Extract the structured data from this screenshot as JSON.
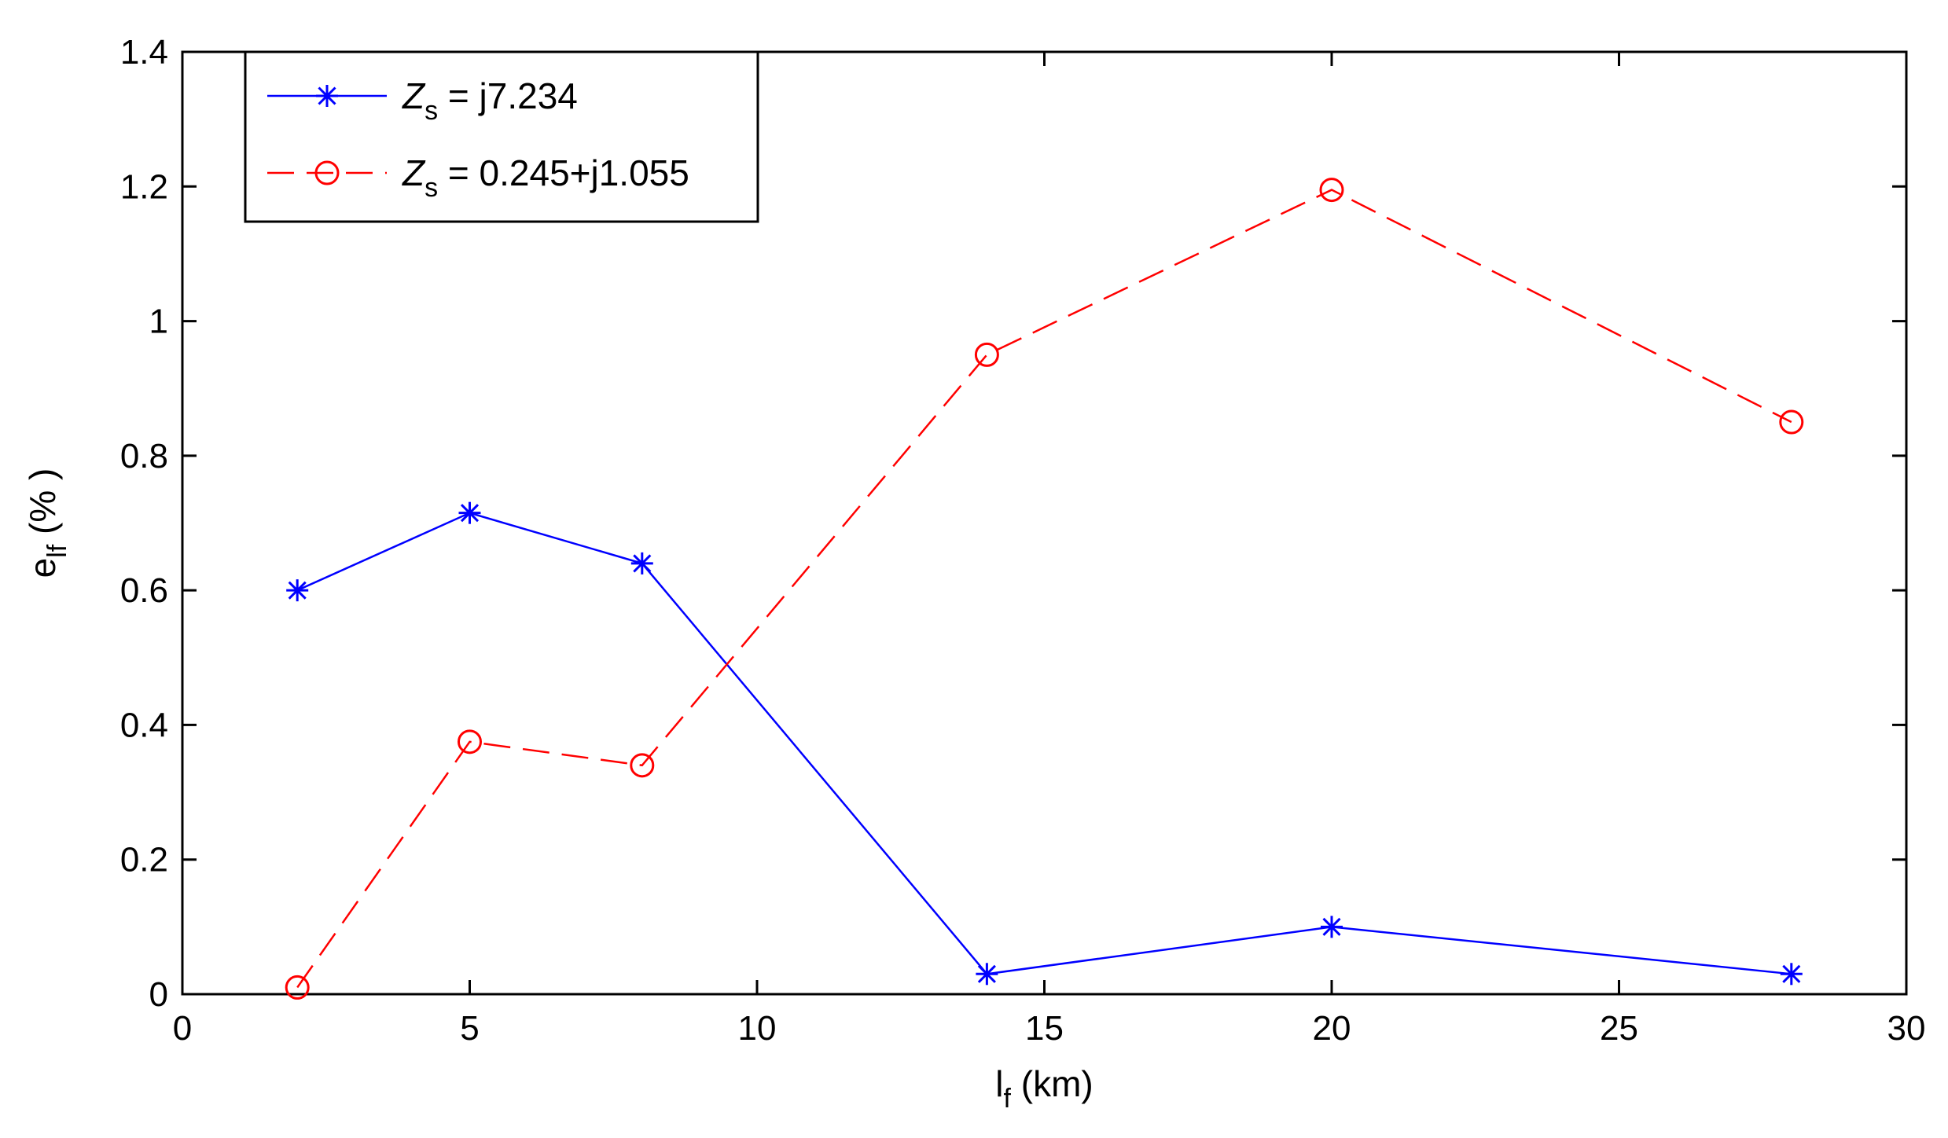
{
  "chart_data": {
    "type": "line",
    "xlabel": "l",
    "xlabel_sub": "f",
    "xlabel_unit": " (km)",
    "ylabel": "e",
    "ylabel_sub": "lf",
    "ylabel_unit": " (% )",
    "xlim": [
      0,
      30
    ],
    "ylim": [
      0,
      1.4
    ],
    "xticks": [
      0,
      5,
      10,
      15,
      20,
      25,
      30
    ],
    "yticks": [
      0,
      0.2,
      0.4,
      0.6,
      0.8,
      1,
      1.2,
      1.4
    ],
    "xtick_labels": [
      "0",
      "5",
      "10",
      "15",
      "20",
      "25",
      "30"
    ],
    "ytick_labels": [
      "0",
      "0.2",
      "0.4",
      "0.6",
      "0.8",
      "1",
      "1.2",
      "1.4"
    ],
    "grid": false,
    "legend_position": "top-left",
    "series": [
      {
        "label_main": "Z",
        "label_sub": "s",
        "label_rest": " = j7.234",
        "color": "#0000ff",
        "marker": "star",
        "line_style": "solid",
        "x": [
          2,
          5,
          8,
          14,
          20,
          28
        ],
        "y": [
          0.6,
          0.715,
          0.64,
          0.03,
          0.1,
          0.03
        ]
      },
      {
        "label_main": "Z",
        "label_sub": "s",
        "label_rest": " = 0.245+j1.055",
        "color": "#ff0000",
        "marker": "circle",
        "line_style": "dashed",
        "x": [
          2,
          5,
          8,
          14,
          20,
          28
        ],
        "y": [
          0.01,
          0.375,
          0.34,
          0.95,
          1.195,
          0.85
        ]
      }
    ]
  }
}
